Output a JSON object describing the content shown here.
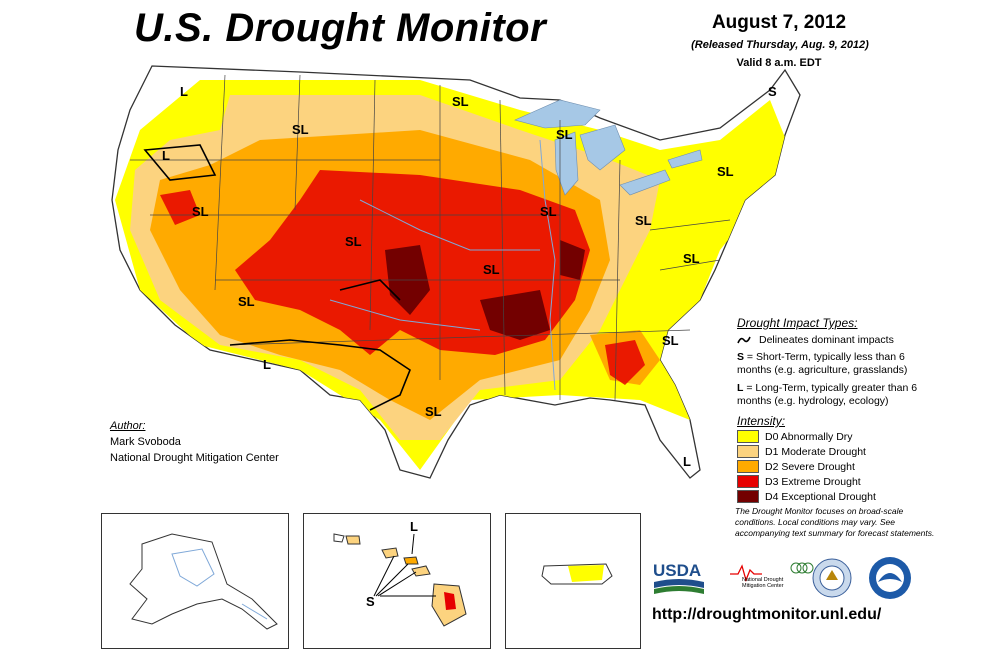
{
  "title": "U.S. Drought Monitor",
  "date": "August 7, 2012",
  "released": "(Released Thursday, Aug. 9, 2012)",
  "valid": "Valid 8 a.m. EDT",
  "author": {
    "heading": "Author:",
    "name": "Mark Svoboda",
    "org": "National Drought Mitigation Center"
  },
  "legend": {
    "impact_heading": "Drought Impact Types:",
    "delineates": "Delineates dominant impacts",
    "short_term_key": "S",
    "short_term": " = Short-Term, typically less than 6 months (e.g. agriculture, grasslands)",
    "long_term_key": "L",
    "long_term": " = Long-Term, typically greater than 6 months (e.g. hydrology, ecology)",
    "intensity_heading": "Intensity:",
    "levels": [
      {
        "label": "D0 Abnormally Dry",
        "color": "#ffff00"
      },
      {
        "label": "D1 Moderate Drought",
        "color": "#fcd37f"
      },
      {
        "label": "D2 Severe Drought",
        "color": "#ffaa00"
      },
      {
        "label": "D3 Extreme Drought",
        "color": "#e60000"
      },
      {
        "label": "D4 Exceptional Drought",
        "color": "#730000"
      }
    ]
  },
  "note": "The Drought Monitor focuses on broad-scale conditions. Local conditions may vary. See accompanying text summary for forecast statements.",
  "url": "http://droughtmonitor.unl.edu/",
  "map_labels": {
    "l_nw": "L",
    "l_or": "L",
    "sl_mt": "SL",
    "sl_nd": "SL",
    "s_me": "S",
    "sl_mi": "SL",
    "sl_nv": "SL",
    "sl_co": "SL",
    "sl_ne": "SL",
    "sl_ks": "SL",
    "sl_oh": "SL",
    "sl_pa": "SL",
    "sl_wv": "SL",
    "sl_az": "SL",
    "l_nm": "L",
    "sl_tx": "SL",
    "sl_ga": "SL",
    "l_fl": "L",
    "l_hi": "L",
    "s_hi": "S"
  },
  "logos": {
    "usda": "USDA",
    "ndmc": "National Drought Mitigation Center"
  },
  "colors": {
    "d0": "#ffff00",
    "d1": "#fcd37f",
    "d2": "#ffaa00",
    "d3": "#e60000",
    "d4": "#730000",
    "water": "#a6c8e6"
  }
}
